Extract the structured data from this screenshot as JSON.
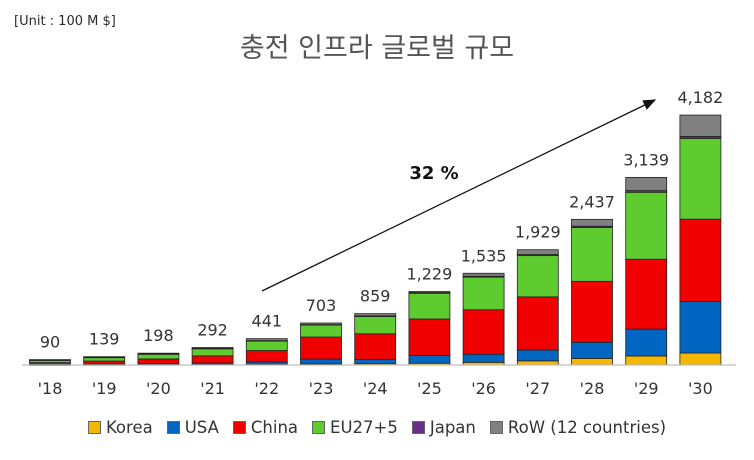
{
  "unit": "[Unit : 100 M $]",
  "title": "충전 인프라 글로벌 규모",
  "chart_data": {
    "type": "bar",
    "stacked": true,
    "categories": [
      "'18",
      "'19",
      "'20",
      "'21",
      "'22",
      "'23",
      "'24",
      "'25",
      "'26",
      "'27",
      "'28",
      "'29",
      "'30"
    ],
    "totals": [
      90,
      139,
      198,
      292,
      441,
      703,
      859,
      1229,
      1535,
      1929,
      2437,
      3139,
      4182
    ],
    "total_labels": [
      "90",
      "139",
      "198",
      "292",
      "441",
      "703",
      "859",
      "1,229",
      "1,535",
      "1,929",
      "2,437",
      "3,139",
      "4,182"
    ],
    "series": [
      {
        "name": "Korea",
        "color": "#F5B800",
        "values": [
          3,
          4,
          6,
          8,
          12,
          18,
          22,
          30,
          45,
          70,
          110,
          150,
          200
        ]
      },
      {
        "name": "USA",
        "color": "#0066C2",
        "values": [
          8,
          12,
          16,
          25,
          40,
          80,
          70,
          130,
          135,
          180,
          270,
          450,
          860
        ]
      },
      {
        "name": "China",
        "color": "#F00000",
        "values": [
          30,
          50,
          80,
          120,
          190,
          370,
          430,
          610,
          745,
          890,
          1020,
          1170,
          1380
        ]
      },
      {
        "name": "EU27+5",
        "color": "#5ECC2F",
        "values": [
          40,
          60,
          80,
          120,
          160,
          200,
          290,
          430,
          545,
          690,
          900,
          1120,
          1350
        ]
      },
      {
        "name": "Japan",
        "color": "#6E2C8A",
        "values": [
          2,
          3,
          4,
          5,
          6,
          8,
          10,
          12,
          15,
          18,
          22,
          28,
          35
        ]
      },
      {
        "name": "RoW (12 countries)",
        "color": "#808080",
        "values": [
          7,
          10,
          12,
          14,
          33,
          27,
          37,
          17,
          50,
          81,
          115,
          221,
          357
        ]
      }
    ],
    "ylim": [
      0,
      4300
    ],
    "annotation": "32 %",
    "xlabel": "",
    "ylabel": ""
  }
}
